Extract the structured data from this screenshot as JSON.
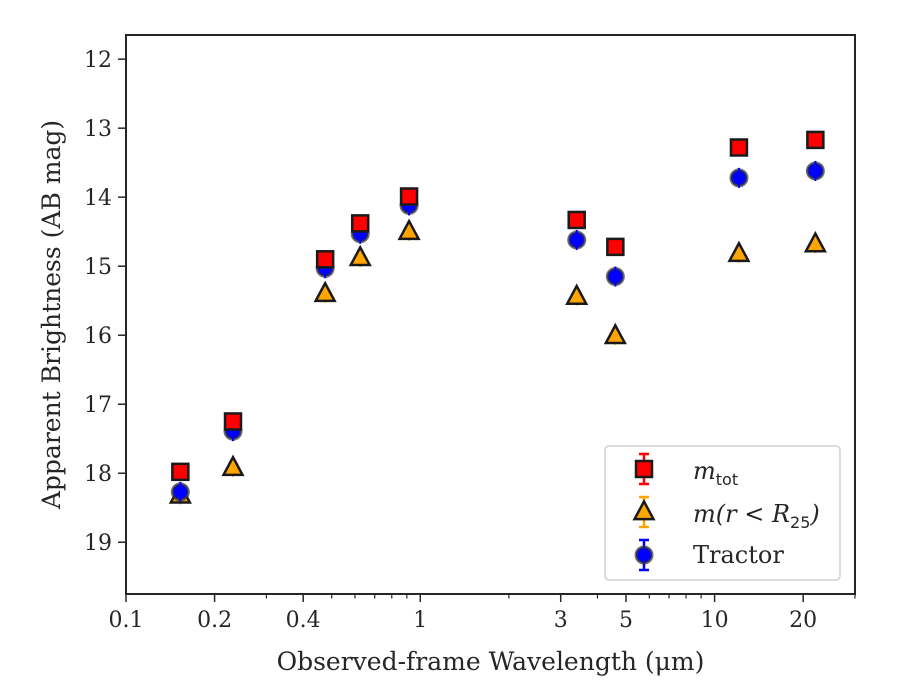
{
  "chart_data": {
    "type": "scatter",
    "xlabel": "Observed-frame Wavelength (μm)",
    "ylabel": "Apparent Brightness (AB mag)",
    "x_scale": "log",
    "xlim": [
      0.1,
      30
    ],
    "ylim": [
      19.75,
      11.65
    ],
    "y_inverted": true,
    "x_ticks": [
      0.1,
      0.2,
      0.4,
      1,
      3,
      5,
      10,
      20
    ],
    "x_tick_labels": [
      "0.1",
      "0.2",
      "0.4",
      "1",
      "3",
      "5",
      "10",
      "20"
    ],
    "y_ticks": [
      12,
      13,
      14,
      15,
      16,
      17,
      18,
      19
    ],
    "y_tick_labels": [
      "12",
      "13",
      "14",
      "15",
      "16",
      "17",
      "18",
      "19"
    ],
    "legend_position": "lower-right",
    "series": [
      {
        "name": "m_tot",
        "legend_main": "m",
        "legend_sub": "tot",
        "marker": "square",
        "color": "#ff0000",
        "x": [
          0.153,
          0.231,
          0.475,
          0.625,
          0.916,
          3.4,
          4.6,
          12.1,
          22.0
        ],
        "y": [
          17.98,
          17.25,
          14.9,
          14.38,
          13.99,
          14.33,
          14.72,
          13.28,
          13.17
        ]
      },
      {
        "name": "m(r < R_25)",
        "legend_main": "m(r < R",
        "legend_sub": "25",
        "legend_close": ")",
        "marker": "triangle",
        "color": "#ffa500",
        "x": [
          0.153,
          0.231,
          0.475,
          0.625,
          0.916,
          3.4,
          4.6,
          12.1,
          22.0
        ],
        "y": [
          18.32,
          17.92,
          15.4,
          14.88,
          14.5,
          15.44,
          16.01,
          14.82,
          14.68
        ]
      },
      {
        "name": "Tractor",
        "legend_main": "Tractor",
        "marker": "circle",
        "color": "#0000ff",
        "x": [
          0.153,
          0.231,
          0.475,
          0.625,
          0.916,
          3.4,
          4.6,
          12.1,
          22.0
        ],
        "y": [
          18.27,
          17.39,
          15.03,
          14.53,
          14.12,
          14.62,
          15.15,
          13.72,
          13.62
        ]
      }
    ]
  }
}
